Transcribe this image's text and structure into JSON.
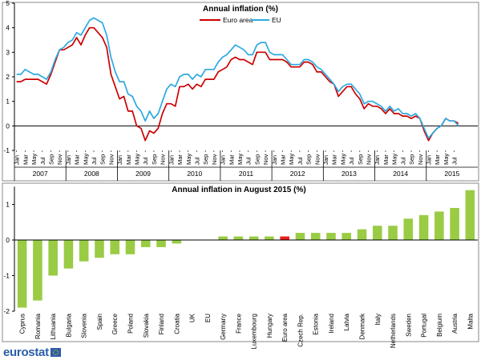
{
  "footer": {
    "logo_text": "eurostat"
  },
  "chart_data": [
    {
      "type": "line",
      "title": "Annual inflation (%)",
      "xlabel": "",
      "ylabel": "",
      "ylim": [
        -1,
        5
      ],
      "yticks": [
        "-1",
        "0",
        "1",
        "2",
        "3",
        "4",
        "5"
      ],
      "grid": false,
      "legend_position": "top-center",
      "x": [
        "2007-01",
        "2007-02",
        "2007-03",
        "2007-04",
        "2007-05",
        "2007-06",
        "2007-07",
        "2007-08",
        "2007-09",
        "2007-10",
        "2007-11",
        "2007-12",
        "2008-01",
        "2008-02",
        "2008-03",
        "2008-04",
        "2008-05",
        "2008-06",
        "2008-07",
        "2008-08",
        "2008-09",
        "2008-10",
        "2008-11",
        "2008-12",
        "2009-01",
        "2009-02",
        "2009-03",
        "2009-04",
        "2009-05",
        "2009-06",
        "2009-07",
        "2009-08",
        "2009-09",
        "2009-10",
        "2009-11",
        "2009-12",
        "2010-01",
        "2010-02",
        "2010-03",
        "2010-04",
        "2010-05",
        "2010-06",
        "2010-07",
        "2010-08",
        "2010-09",
        "2010-10",
        "2010-11",
        "2010-12",
        "2011-01",
        "2011-02",
        "2011-03",
        "2011-04",
        "2011-05",
        "2011-06",
        "2011-07",
        "2011-08",
        "2011-09",
        "2011-10",
        "2011-11",
        "2011-12",
        "2012-01",
        "2012-02",
        "2012-03",
        "2012-04",
        "2012-05",
        "2012-06",
        "2012-07",
        "2012-08",
        "2012-09",
        "2012-10",
        "2012-11",
        "2012-12",
        "2013-01",
        "2013-02",
        "2013-03",
        "2013-04",
        "2013-05",
        "2013-06",
        "2013-07",
        "2013-08",
        "2013-09",
        "2013-10",
        "2013-11",
        "2013-12",
        "2014-01",
        "2014-02",
        "2014-03",
        "2014-04",
        "2014-05",
        "2014-06",
        "2014-07",
        "2014-08",
        "2014-09",
        "2014-10",
        "2014-11",
        "2014-12",
        "2015-01",
        "2015-02",
        "2015-03",
        "2015-04",
        "2015-05",
        "2015-06",
        "2015-07",
        "2015-08"
      ],
      "month_labels": [
        "Jan",
        "Mar",
        "May",
        "Jul",
        "Sep",
        "Nov"
      ],
      "month_label_indices": [
        0,
        2,
        4,
        6,
        8,
        10
      ],
      "year_labels": [
        "2007",
        "2008",
        "2009",
        "2010",
        "2011",
        "2012",
        "2013",
        "2014",
        "2015"
      ],
      "series": [
        {
          "name": "Euro area",
          "color": "#cc0000",
          "values": [
            1.8,
            1.8,
            1.9,
            1.9,
            1.9,
            1.9,
            1.8,
            1.7,
            2.1,
            2.6,
            3.1,
            3.1,
            3.2,
            3.3,
            3.6,
            3.3,
            3.7,
            4.0,
            4.0,
            3.8,
            3.6,
            3.2,
            2.1,
            1.6,
            1.1,
            1.2,
            0.6,
            0.6,
            0.0,
            -0.1,
            -0.6,
            -0.2,
            -0.3,
            -0.1,
            0.5,
            0.9,
            0.9,
            0.8,
            1.6,
            1.6,
            1.7,
            1.5,
            1.7,
            1.6,
            1.9,
            1.9,
            1.9,
            2.2,
            2.3,
            2.4,
            2.7,
            2.8,
            2.7,
            2.7,
            2.6,
            2.5,
            3.0,
            3.0,
            3.0,
            2.7,
            2.7,
            2.7,
            2.7,
            2.6,
            2.4,
            2.4,
            2.4,
            2.6,
            2.6,
            2.5,
            2.2,
            2.2,
            2.0,
            1.8,
            1.7,
            1.2,
            1.4,
            1.6,
            1.6,
            1.3,
            1.1,
            0.7,
            0.9,
            0.8,
            0.8,
            0.7,
            0.5,
            0.7,
            0.5,
            0.5,
            0.4,
            0.4,
            0.3,
            0.4,
            0.3,
            -0.2,
            -0.6,
            -0.3,
            -0.1,
            0.0,
            0.3,
            0.2,
            0.2,
            0.1
          ]
        },
        {
          "name": "EU",
          "color": "#2ca9e1",
          "values": [
            2.1,
            2.1,
            2.3,
            2.2,
            2.1,
            2.1,
            2.0,
            1.9,
            2.2,
            2.7,
            3.1,
            3.2,
            3.4,
            3.5,
            3.8,
            3.7,
            4.0,
            4.3,
            4.4,
            4.3,
            4.2,
            3.7,
            2.8,
            2.2,
            1.8,
            1.8,
            1.3,
            1.2,
            0.8,
            0.6,
            0.2,
            0.6,
            0.3,
            0.5,
            1.0,
            1.5,
            1.7,
            1.6,
            2.0,
            2.1,
            2.1,
            1.9,
            2.1,
            2.0,
            2.3,
            2.3,
            2.3,
            2.6,
            2.8,
            2.9,
            3.1,
            3.3,
            3.2,
            3.1,
            2.9,
            2.9,
            3.3,
            3.4,
            3.4,
            3.0,
            2.9,
            2.9,
            2.9,
            2.7,
            2.5,
            2.5,
            2.5,
            2.7,
            2.7,
            2.6,
            2.4,
            2.3,
            2.1,
            1.9,
            1.7,
            1.4,
            1.6,
            1.7,
            1.7,
            1.5,
            1.3,
            0.9,
            1.0,
            1.0,
            0.9,
            0.8,
            0.6,
            0.8,
            0.6,
            0.7,
            0.5,
            0.5,
            0.4,
            0.5,
            0.3,
            -0.1,
            -0.5,
            -0.3,
            -0.1,
            0.0,
            0.3,
            0.2,
            0.2,
            0.0
          ]
        }
      ]
    },
    {
      "type": "bar",
      "title": "Annual inflation in August 2015 (%)",
      "xlabel": "",
      "ylabel": "",
      "ylim": [
        -2,
        1.5
      ],
      "yticks": [
        "-2",
        "-1",
        "0",
        "1"
      ],
      "grid": false,
      "bar_color": "#99cc44",
      "highlight_color": "#e8201c",
      "highlight_category": "Euro area",
      "categories": [
        "Cyprus",
        "Romania",
        "Lithuania",
        "Bulgaria",
        "Slovenia",
        "Spain",
        "Greece",
        "Poland",
        "Slovakia",
        "Finland",
        "Croatia",
        "UK",
        "EU",
        "Germany",
        "France",
        "Luxembourg",
        "Hungary",
        "Euro area",
        "Czech Rep.",
        "Estonia",
        "Ireland",
        "Latvia",
        "Denmark",
        "Italy",
        "Netherlands",
        "Sweden",
        "Portugal",
        "Belgium",
        "Austria",
        "Malta"
      ],
      "values": [
        -1.9,
        -1.7,
        -1.0,
        -0.8,
        -0.6,
        -0.5,
        -0.4,
        -0.4,
        -0.2,
        -0.2,
        -0.1,
        0.0,
        0.0,
        0.1,
        0.1,
        0.1,
        0.1,
        0.1,
        0.2,
        0.2,
        0.2,
        0.2,
        0.3,
        0.4,
        0.4,
        0.6,
        0.7,
        0.8,
        0.9,
        1.4
      ]
    }
  ]
}
